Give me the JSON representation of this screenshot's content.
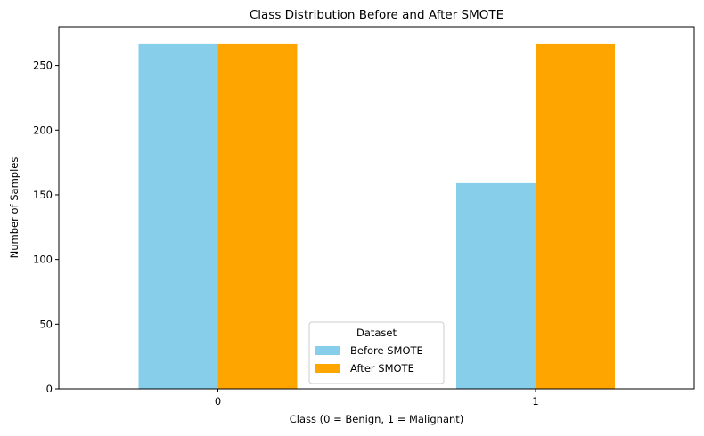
{
  "chart_data": {
    "type": "bar",
    "title": "Class Distribution Before and After SMOTE",
    "xlabel": "Class (0 = Benign, 1 = Malignant)",
    "ylabel": "Number of Samples",
    "categories": [
      "0",
      "1"
    ],
    "series": [
      {
        "name": "Before SMOTE",
        "values": [
          267,
          159
        ],
        "color": "#87ceeb"
      },
      {
        "name": "After SMOTE",
        "values": [
          267,
          267
        ],
        "color": "#ffa500"
      }
    ],
    "ylim": [
      0,
      280
    ],
    "yticks": [
      0,
      50,
      100,
      150,
      200,
      250
    ],
    "grid": false,
    "legend": {
      "title": "Dataset",
      "placement": "bottom-center"
    }
  }
}
